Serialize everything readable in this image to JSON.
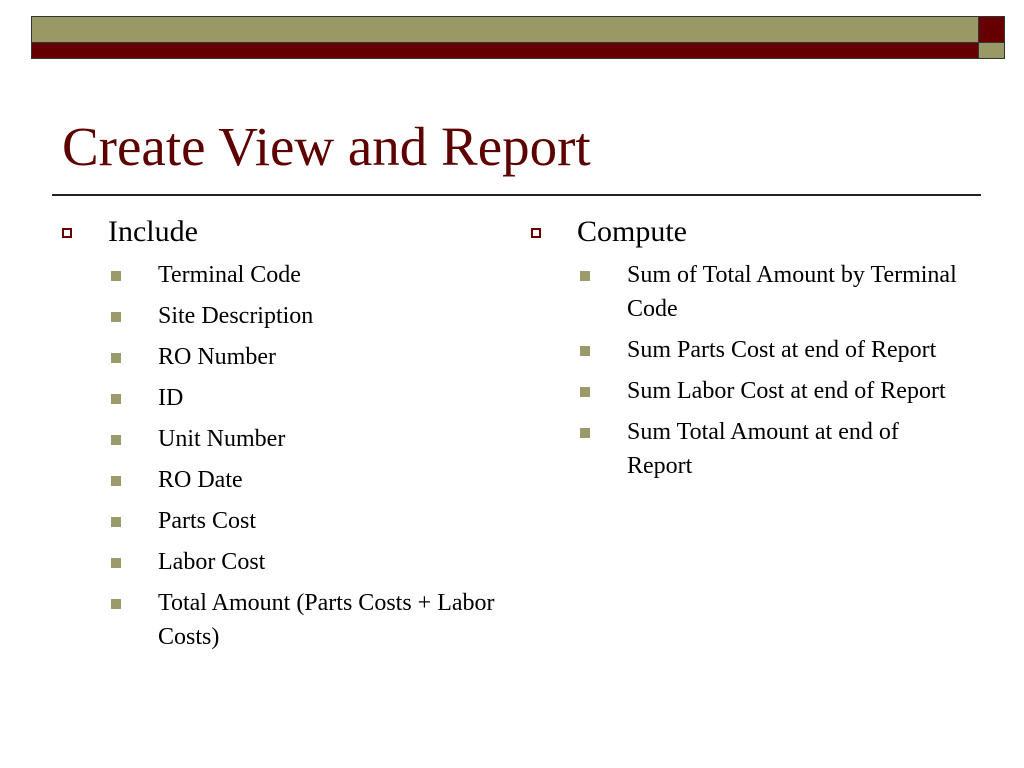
{
  "title": "Create View and Report",
  "colors": {
    "olive": "#999966",
    "dark_red": "#660000"
  },
  "left": {
    "heading": "Include",
    "items": [
      "Terminal Code",
      "Site Description",
      "RO Number",
      "ID",
      "Unit Number",
      "RO Date",
      "Parts Cost",
      "Labor Cost",
      "Total Amount (Parts Costs + Labor Costs)"
    ]
  },
  "right": {
    "heading": "Compute",
    "items": [
      "Sum of Total Amount by Terminal Code",
      "Sum Parts Cost at end of Report",
      "Sum Labor Cost at end of Report",
      "Sum Total Amount at end of Report"
    ]
  }
}
